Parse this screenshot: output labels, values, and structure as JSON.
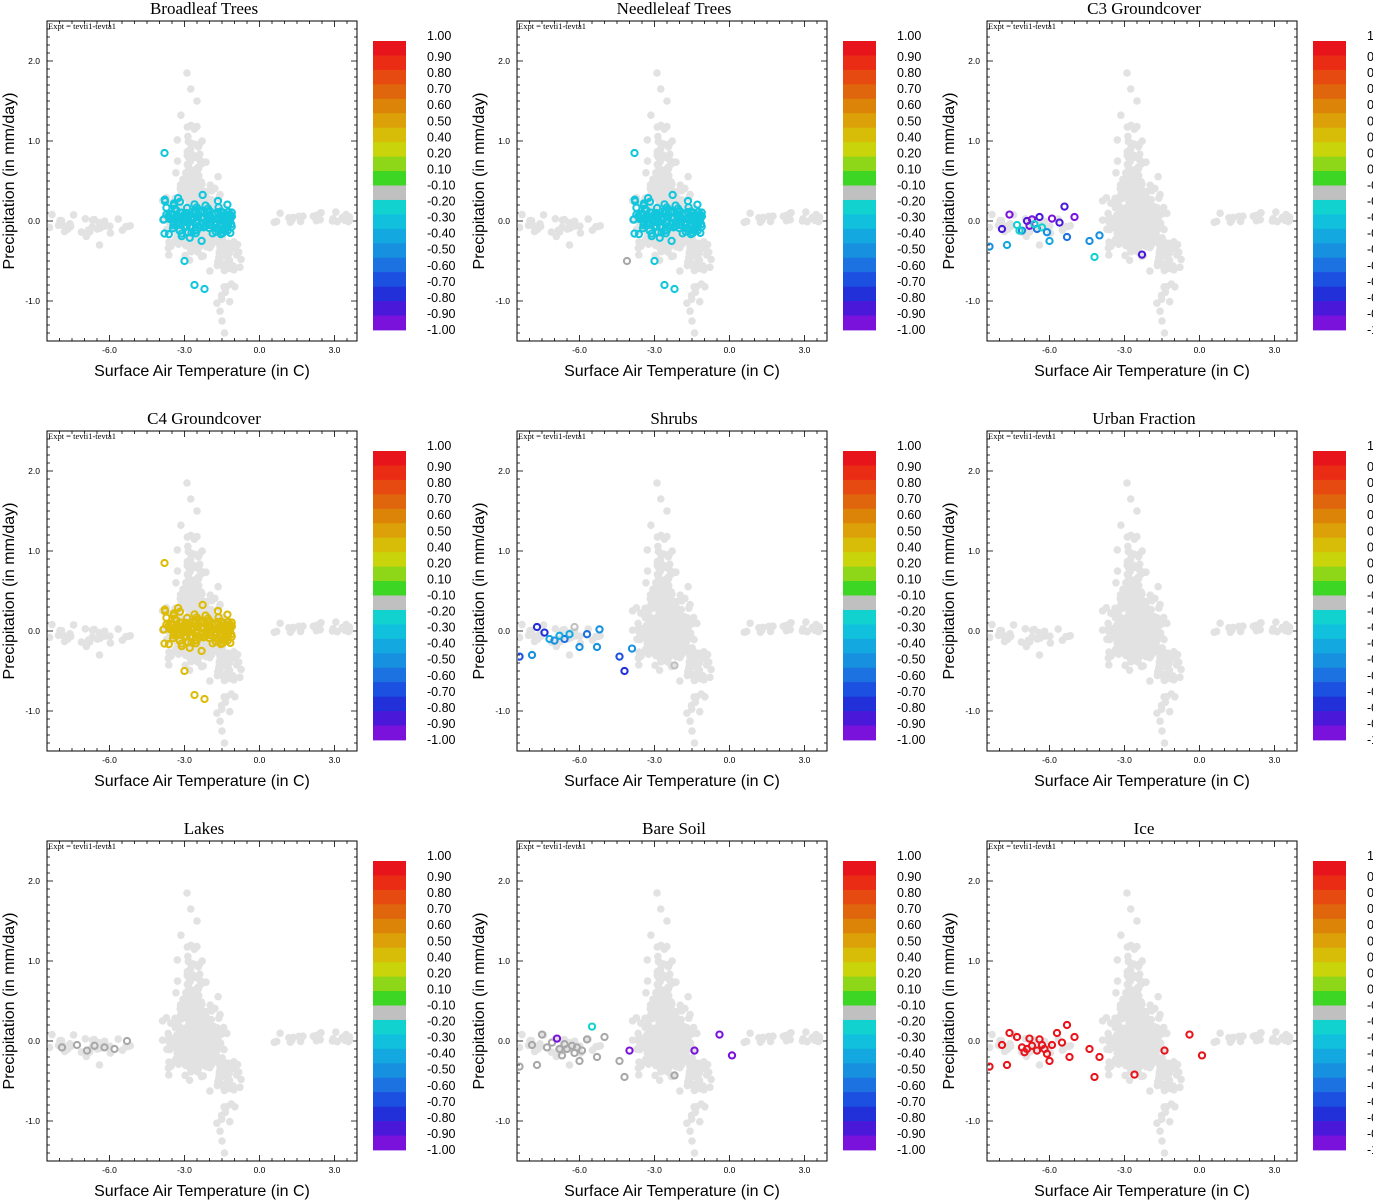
{
  "experiment_label": "Expt = tevti1-tevta1",
  "colorbar": {
    "labels": [
      "1.00",
      "0.90",
      "0.80",
      "0.70",
      "0.60",
      "0.50",
      "0.40",
      "0.20",
      "0.10",
      "-0.10",
      "-0.20",
      "-0.30",
      "-0.40",
      "-0.50",
      "-0.60",
      "-0.70",
      "-0.80",
      "-0.90",
      "-1.00"
    ],
    "colors": [
      "#e8141c",
      "#ea2c14",
      "#e64a10",
      "#e0660e",
      "#db8408",
      "#dca108",
      "#d8bd08",
      "#c9d40a",
      "#8ed618",
      "#3ed624",
      "#c0c0c0",
      "#12d2d0",
      "#10c0dc",
      "#14a8e0",
      "#1890e0",
      "#1c72e0",
      "#1c50e0",
      "#2230da",
      "#4a18d8",
      "#7a12dc"
    ]
  },
  "background_color": "#e2e2e2",
  "axes": {
    "xlabel": "Surface Air Temperature (in C)",
    "ylabel": "Precipitation (in mm/day)",
    "xticks": [
      "-6.0",
      "-3.0",
      "0.0",
      "3.0"
    ],
    "yticks": [
      "2.0",
      "1.0",
      "0.0",
      "-1.0"
    ],
    "xlim": [
      -8.5,
      3.9
    ],
    "ylim": [
      -1.5,
      2.5
    ]
  },
  "chart_data": [
    {
      "type": "scatter",
      "title": "Broadleaf Trees",
      "highlight": {
        "color": "#12c6dc",
        "x_range": [
          -4.0,
          -1.1
        ],
        "y_center": 0.0,
        "count": 160,
        "seed": 11,
        "extra": [
          [
            -2.6,
            -0.8
          ],
          [
            -2.2,
            -0.85
          ],
          [
            -3.8,
            0.85
          ],
          [
            -3.0,
            -0.5
          ]
        ]
      }
    },
    {
      "type": "scatter",
      "title": "Needleleaf Trees",
      "highlight": {
        "color": "#12c6dc",
        "x_range": [
          -4.0,
          -1.1
        ],
        "y_center": 0.0,
        "count": 160,
        "seed": 11,
        "extra": [
          [
            -2.6,
            -0.8
          ],
          [
            -2.2,
            -0.85
          ],
          [
            -3.8,
            0.85
          ],
          [
            -3.0,
            -0.5
          ]
        ],
        "gray_extra": [
          [
            -4.1,
            -0.5
          ]
        ]
      }
    },
    {
      "type": "scatter",
      "title": "C3 Groundcover",
      "highlight": {
        "points": [
          [
            -8.4,
            -0.32,
            "#1890e0"
          ],
          [
            -7.9,
            -0.1,
            "#4a18d8"
          ],
          [
            -7.7,
            -0.3,
            "#14a8e0"
          ],
          [
            -7.6,
            0.08,
            "#7a12dc"
          ],
          [
            -7.3,
            -0.05,
            "#12d2d0"
          ],
          [
            -7.1,
            -0.12,
            "#1890e0"
          ],
          [
            -6.9,
            0.0,
            "#4a18d8"
          ],
          [
            -6.8,
            -0.06,
            "#7a12dc"
          ],
          [
            -6.7,
            0.02,
            "#7a12dc"
          ],
          [
            -6.5,
            -0.1,
            "#1c72e0"
          ],
          [
            -6.4,
            0.05,
            "#4a18d8"
          ],
          [
            -6.3,
            -0.08,
            "#12d2d0"
          ],
          [
            -6.1,
            -0.14,
            "#1890e0"
          ],
          [
            -6.0,
            -0.25,
            "#14a8e0"
          ],
          [
            -5.9,
            0.03,
            "#7a12dc"
          ],
          [
            -5.6,
            -0.02,
            "#4a18d8"
          ],
          [
            -5.4,
            0.18,
            "#4a18d8"
          ],
          [
            -5.3,
            -0.2,
            "#1c72e0"
          ],
          [
            -5.0,
            0.05,
            "#7a12dc"
          ],
          [
            -4.4,
            -0.25,
            "#1890e0"
          ],
          [
            -4.2,
            -0.45,
            "#12d2d0"
          ],
          [
            -4.0,
            -0.18,
            "#1890e0"
          ],
          [
            -2.3,
            -0.42,
            "#4a18d8"
          ],
          [
            -7.2,
            -0.12,
            "#12d2d0"
          ],
          [
            -6.6,
            -0.04,
            "#12d2d0"
          ]
        ]
      }
    },
    {
      "type": "scatter",
      "title": "C4 Groundcover",
      "highlight": {
        "color": "#dcbc08",
        "x_range": [
          -4.0,
          -1.1
        ],
        "y_center": 0.0,
        "count": 160,
        "seed": 11,
        "extra": [
          [
            -2.6,
            -0.8
          ],
          [
            -2.2,
            -0.85
          ],
          [
            -3.8,
            0.85
          ],
          [
            -3.0,
            -0.5
          ]
        ]
      }
    },
    {
      "type": "scatter",
      "title": "Shrubs",
      "highlight": {
        "points": [
          [
            -8.4,
            -0.32,
            "#1c50e0"
          ],
          [
            -7.9,
            -0.3,
            "#1890e0"
          ],
          [
            -7.7,
            0.05,
            "#2230da"
          ],
          [
            -7.4,
            -0.02,
            "#2230da"
          ],
          [
            -7.2,
            -0.1,
            "#14a8e0"
          ],
          [
            -7.0,
            -0.12,
            "#1890e0"
          ],
          [
            -6.6,
            -0.1,
            "#1c72e0"
          ],
          [
            -6.4,
            -0.04,
            "#14a8e0"
          ],
          [
            -6.2,
            0.05,
            "#c0c0c0"
          ],
          [
            -6.0,
            -0.2,
            "#1890e0"
          ],
          [
            -5.7,
            -0.04,
            "#1c72e0"
          ],
          [
            -5.3,
            -0.2,
            "#1890e0"
          ],
          [
            -5.2,
            0.02,
            "#1890e0"
          ],
          [
            -4.4,
            -0.32,
            "#1c50e0"
          ],
          [
            -4.2,
            -0.5,
            "#2230da"
          ],
          [
            -3.9,
            -0.22,
            "#1890e0"
          ],
          [
            -2.2,
            -0.43,
            "#c0c0c0"
          ],
          [
            -6.8,
            -0.06,
            "#14a8e0"
          ]
        ]
      }
    },
    {
      "type": "scatter",
      "title": "Urban Fraction",
      "highlight": {
        "points": []
      }
    },
    {
      "type": "scatter",
      "title": "Lakes",
      "highlight": {
        "points": [
          [
            -7.9,
            -0.08,
            "#a8a8a8"
          ],
          [
            -7.3,
            -0.05,
            "#a8a8a8"
          ],
          [
            -6.9,
            -0.12,
            "#a8a8a8"
          ],
          [
            -6.6,
            -0.06,
            "#a8a8a8"
          ],
          [
            -6.2,
            -0.08,
            "#a8a8a8"
          ],
          [
            -5.8,
            -0.1,
            "#a8a8a8"
          ],
          [
            -5.3,
            0.0,
            "#a8a8a8"
          ]
        ]
      }
    },
    {
      "type": "scatter",
      "title": "Bare Soil",
      "highlight": {
        "points": [
          [
            -8.4,
            -0.32,
            "#a8a8a8"
          ],
          [
            -7.9,
            -0.05,
            "#a8a8a8"
          ],
          [
            -7.7,
            -0.3,
            "#a8a8a8"
          ],
          [
            -7.5,
            0.08,
            "#a8a8a8"
          ],
          [
            -7.3,
            -0.08,
            "#a8a8a8"
          ],
          [
            -7.1,
            -0.02,
            "#a8a8a8"
          ],
          [
            -6.9,
            0.03,
            "#7a12dc"
          ],
          [
            -6.8,
            -0.1,
            "#a8a8a8"
          ],
          [
            -6.6,
            -0.04,
            "#a8a8a8"
          ],
          [
            -6.5,
            -0.1,
            "#a8a8a8"
          ],
          [
            -6.3,
            -0.06,
            "#a8a8a8"
          ],
          [
            -6.2,
            -0.15,
            "#a8a8a8"
          ],
          [
            -6.1,
            -0.08,
            "#a8a8a8"
          ],
          [
            -6.0,
            -0.25,
            "#a8a8a8"
          ],
          [
            -5.9,
            -0.12,
            "#a8a8a8"
          ],
          [
            -5.7,
            0.02,
            "#a8a8a8"
          ],
          [
            -5.5,
            0.18,
            "#12d2d0"
          ],
          [
            -5.3,
            -0.2,
            "#a8a8a8"
          ],
          [
            -5.0,
            0.05,
            "#a8a8a8"
          ],
          [
            -4.4,
            -0.25,
            "#a8a8a8"
          ],
          [
            -4.2,
            -0.45,
            "#a8a8a8"
          ],
          [
            -4.0,
            -0.12,
            "#7a12dc"
          ],
          [
            -2.2,
            -0.43,
            "#a8a8a8"
          ],
          [
            -1.4,
            -0.12,
            "#7a12dc"
          ],
          [
            -0.4,
            0.08,
            "#7a12dc"
          ],
          [
            0.1,
            -0.18,
            "#7a12dc"
          ],
          [
            -6.7,
            -0.18,
            "#a8a8a8"
          ]
        ]
      }
    },
    {
      "type": "scatter",
      "title": "Ice",
      "highlight": {
        "points": [
          [
            -8.4,
            -0.32,
            "#e8141c"
          ],
          [
            -7.9,
            -0.05,
            "#e8141c"
          ],
          [
            -7.7,
            -0.3,
            "#e8141c"
          ],
          [
            -7.6,
            0.1,
            "#e8141c"
          ],
          [
            -7.3,
            0.05,
            "#e8141c"
          ],
          [
            -7.1,
            -0.08,
            "#e8141c"
          ],
          [
            -7.0,
            -0.14,
            "#e8141c"
          ],
          [
            -6.8,
            0.03,
            "#e8141c"
          ],
          [
            -6.7,
            -0.06,
            "#e8141c"
          ],
          [
            -6.5,
            -0.12,
            "#e8141c"
          ],
          [
            -6.4,
            0.02,
            "#e8141c"
          ],
          [
            -6.2,
            -0.1,
            "#e8141c"
          ],
          [
            -6.1,
            -0.16,
            "#e8141c"
          ],
          [
            -6.0,
            -0.25,
            "#e8141c"
          ],
          [
            -5.9,
            -0.05,
            "#e8141c"
          ],
          [
            -5.7,
            0.1,
            "#e8141c"
          ],
          [
            -5.5,
            -0.02,
            "#e8141c"
          ],
          [
            -5.3,
            0.2,
            "#e8141c"
          ],
          [
            -5.2,
            -0.2,
            "#e8141c"
          ],
          [
            -5.0,
            0.05,
            "#e8141c"
          ],
          [
            -4.4,
            -0.1,
            "#e8141c"
          ],
          [
            -4.2,
            -0.45,
            "#e8141c"
          ],
          [
            -4.0,
            -0.2,
            "#e8141c"
          ],
          [
            -2.6,
            -0.42,
            "#e8141c"
          ],
          [
            -1.4,
            -0.12,
            "#e8141c"
          ],
          [
            -0.4,
            0.08,
            "#e8141c"
          ],
          [
            0.1,
            -0.18,
            "#e8141c"
          ],
          [
            -6.9,
            -0.1,
            "#e8141c"
          ],
          [
            -6.3,
            -0.05,
            "#e8141c"
          ]
        ]
      }
    }
  ]
}
